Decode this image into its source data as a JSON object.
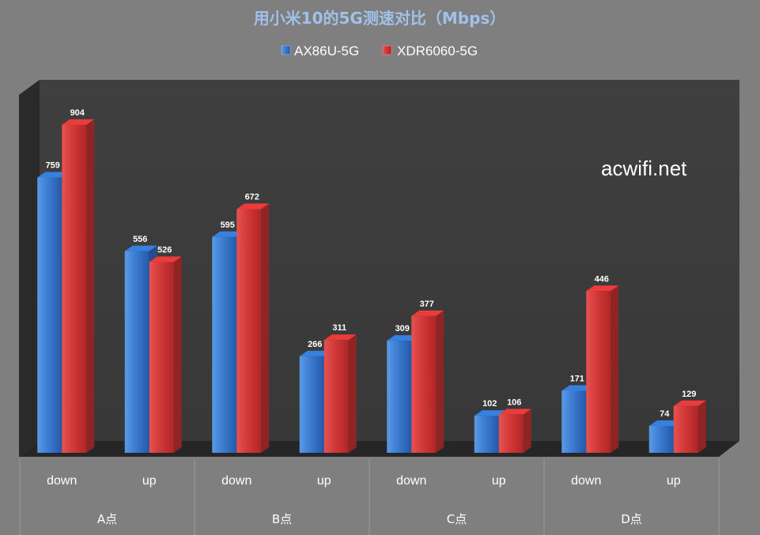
{
  "chart_data": {
    "type": "bar",
    "title": "用小米10的5G测速对比（Mbps）",
    "groups": [
      "A点",
      "B点",
      "C点",
      "D点"
    ],
    "categories": [
      "down",
      "up",
      "down",
      "up",
      "down",
      "up",
      "down",
      "up"
    ],
    "series": [
      {
        "name": "AX86U-5G",
        "color": "#2f6fc2",
        "values": [
          759,
          556,
          595,
          266,
          309,
          102,
          171,
          74
        ]
      },
      {
        "name": "XDR6060-5G",
        "color": "#cc3333",
        "values": [
          904,
          526,
          672,
          311,
          377,
          106,
          446,
          129
        ]
      }
    ],
    "ylim": [
      0,
      1000
    ],
    "grid": false,
    "legend": "top-center",
    "watermark": "acwifi.net",
    "background_color": "#7f7f7f",
    "plot_background_color": "#3d3d3d"
  }
}
